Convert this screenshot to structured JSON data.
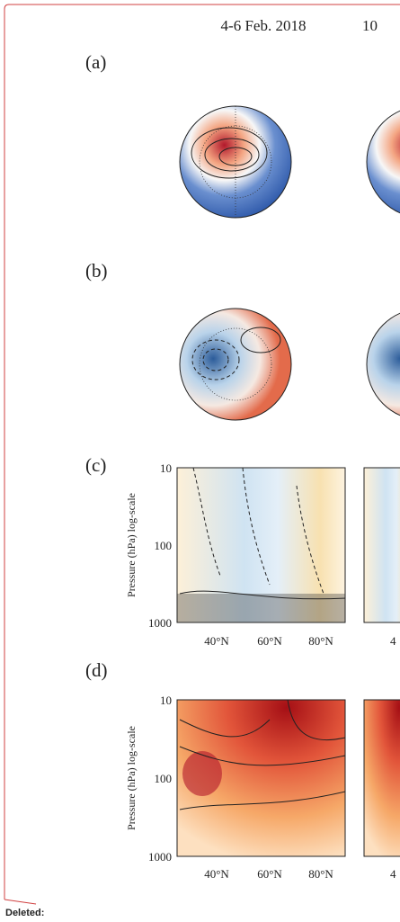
{
  "header": {
    "col1": "4-6 Feb. 2018",
    "col2": "10"
  },
  "panels": [
    {
      "label": "(a)"
    },
    {
      "label": "(b)"
    },
    {
      "label": "(c)",
      "ylabel": "Pressure (hPa) log-scale",
      "yticks": [
        "10",
        "100",
        "1000"
      ],
      "xticks": [
        "40°N",
        "60°N",
        "80°N"
      ],
      "next_xtick": "4"
    },
    {
      "label": "(d)",
      "ylabel": "Pressure (hPa) log-scale",
      "yticks": [
        "10",
        "100",
        "1000"
      ],
      "xticks": [
        "40°N",
        "60°N",
        "80°N"
      ],
      "next_xtick": "4"
    }
  ],
  "margin_note": "Deleted:"
}
